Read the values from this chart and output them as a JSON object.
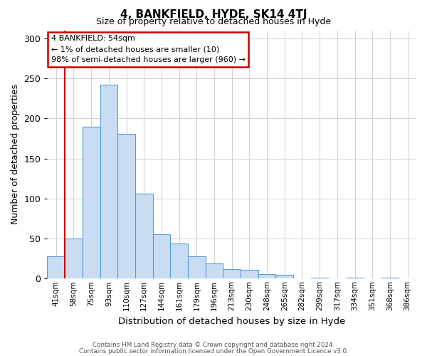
{
  "title": "4, BANKFIELD, HYDE, SK14 4TJ",
  "subtitle": "Size of property relative to detached houses in Hyde",
  "xlabel": "Distribution of detached houses by size in Hyde",
  "ylabel": "Number of detached properties",
  "bar_color": "#c8ddf2",
  "bar_edge_color": "#5b9bd5",
  "categories": [
    "41sqm",
    "58sqm",
    "75sqm",
    "93sqm",
    "110sqm",
    "127sqm",
    "144sqm",
    "161sqm",
    "179sqm",
    "196sqm",
    "213sqm",
    "230sqm",
    "248sqm",
    "265sqm",
    "282sqm",
    "299sqm",
    "317sqm",
    "334sqm",
    "351sqm",
    "368sqm",
    "386sqm"
  ],
  "values": [
    28,
    50,
    190,
    242,
    181,
    106,
    55,
    44,
    28,
    19,
    12,
    11,
    6,
    5,
    0,
    1,
    0,
    1,
    0,
    1,
    0
  ],
  "ylim": [
    0,
    310
  ],
  "yticks": [
    0,
    50,
    100,
    150,
    200,
    250,
    300
  ],
  "marker_color": "#cc0000",
  "annotation_title": "4 BANKFIELD: 54sqm",
  "annotation_line1": "← 1% of detached houses are smaller (10)",
  "annotation_line2": "98% of semi-detached houses are larger (960) →",
  "annotation_box_color": "#ffffff",
  "annotation_box_edge_color": "#cc0000",
  "footer1": "Contains HM Land Registry data © Crown copyright and database right 2024.",
  "footer2": "Contains public sector information licensed under the Open Government Licence v3.0.",
  "background_color": "#ffffff",
  "grid_color": "#d0d0d0"
}
